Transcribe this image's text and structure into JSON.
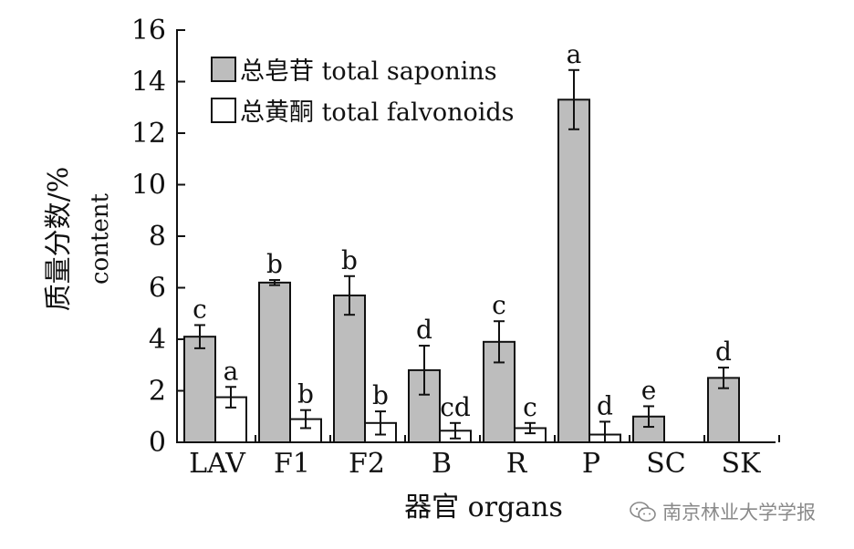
{
  "chart_data": {
    "type": "bar",
    "title": "",
    "categories": [
      "LAV",
      "F1",
      "F2",
      "B",
      "R",
      "P",
      "SC",
      "SK"
    ],
    "series": [
      {
        "name": "总皂苷 total saponins",
        "color": "#bdbdbd",
        "values": [
          4.1,
          6.2,
          5.7,
          2.8,
          3.9,
          13.3,
          1.0,
          2.5
        ],
        "errors": [
          0.45,
          0.1,
          0.75,
          0.95,
          0.8,
          1.15,
          0.4,
          0.4
        ],
        "letters": [
          "c",
          "b",
          "b",
          "d",
          "c",
          "a",
          "e",
          "d"
        ]
      },
      {
        "name": "总黄酮 total falvonoids",
        "color": "#ffffff",
        "values": [
          1.75,
          0.9,
          0.75,
          0.45,
          0.55,
          0.3,
          null,
          null
        ],
        "errors": [
          0.4,
          0.35,
          0.45,
          0.3,
          0.2,
          0.5,
          null,
          null
        ],
        "letters": [
          "a",
          "b",
          "b",
          "cd",
          "c",
          "d",
          null,
          null
        ]
      }
    ],
    "xlabel": "器官 organs",
    "ylabel": "质量分数/%",
    "ylabel2": "content",
    "ylim": [
      0,
      16
    ],
    "yticks": [
      0,
      2,
      4,
      6,
      8,
      10,
      12,
      14,
      16
    ],
    "grid": false,
    "legend_position": "top-left"
  },
  "watermark": {
    "text": "南京林业大学学报",
    "icon": "wechat-icon"
  }
}
